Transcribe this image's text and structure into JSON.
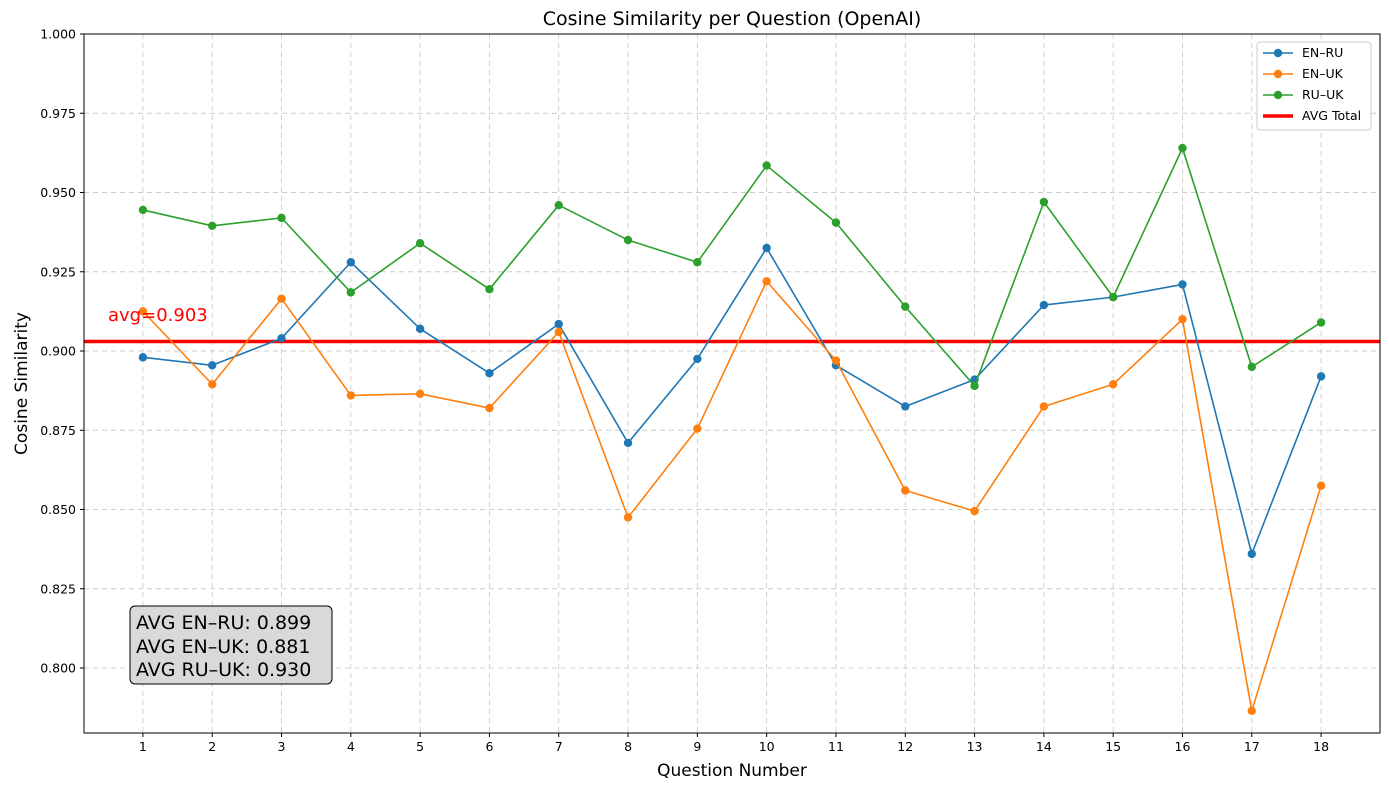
{
  "chart_data": {
    "type": "line",
    "title": "Cosine Similarity per Question (OpenAI)",
    "xlabel": "Question Number",
    "ylabel": "Cosine Similarity",
    "x": [
      1,
      2,
      3,
      4,
      5,
      6,
      7,
      8,
      9,
      10,
      11,
      12,
      13,
      14,
      15,
      16,
      17,
      18
    ],
    "xlim": [
      0.15,
      18.85
    ],
    "ylim": [
      0.7795,
      1.0
    ],
    "yticks": [
      "0.800",
      "0.825",
      "0.850",
      "0.875",
      "0.900",
      "0.925",
      "0.950",
      "0.975",
      "1.000"
    ],
    "grid": true,
    "legend_position": "top-right",
    "series": [
      {
        "name": "EN–RU",
        "color": "#1f77b4",
        "values": [
          0.898,
          0.8955,
          0.904,
          0.928,
          0.907,
          0.893,
          0.9085,
          0.871,
          0.8975,
          0.9325,
          0.8955,
          0.8825,
          0.891,
          0.9145,
          0.917,
          0.921,
          0.836,
          0.892
        ]
      },
      {
        "name": "EN–UK",
        "color": "#ff7f0e",
        "values": [
          0.9125,
          0.8895,
          0.9165,
          0.886,
          0.8865,
          0.882,
          0.906,
          0.8475,
          0.8755,
          0.922,
          0.897,
          0.856,
          0.8495,
          0.8825,
          0.8895,
          0.91,
          0.7865,
          0.8575
        ]
      },
      {
        "name": "RU–UK",
        "color": "#2ca02c",
        "values": [
          0.9445,
          0.9395,
          0.942,
          0.9185,
          0.934,
          0.9195,
          0.946,
          0.935,
          0.928,
          0.9585,
          0.9405,
          0.914,
          0.889,
          0.947,
          0.917,
          0.964,
          0.895,
          0.909
        ]
      }
    ],
    "avg_line": {
      "name": "AVG Total",
      "value": 0.903,
      "color": "#ff0000",
      "label": "avg=0.903"
    },
    "annotation_box": [
      "AVG EN–RU: 0.899",
      "AVG EN–UK: 0.881",
      "AVG RU–UK: 0.930"
    ]
  }
}
